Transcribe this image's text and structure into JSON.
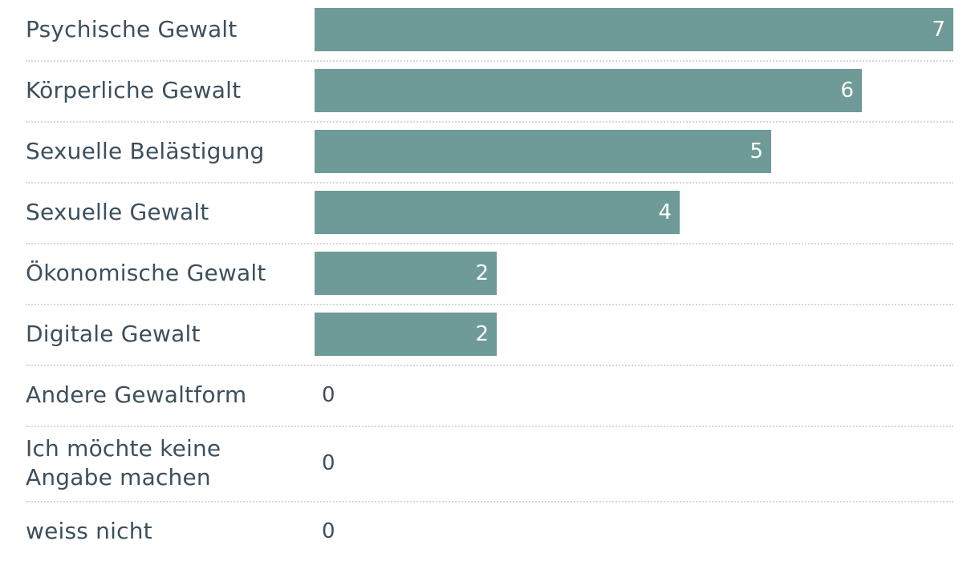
{
  "chart_data": {
    "type": "bar",
    "orientation": "horizontal",
    "categories": [
      "Psychische Gewalt",
      "Körperliche Gewalt",
      "Sexuelle Belästigung",
      "Sexuelle Gewalt",
      "Ökonomische Gewalt",
      "Digitale Gewalt",
      "Andere Gewaltform",
      "Ich möchte keine Angabe machen",
      "weiss nicht"
    ],
    "values": [
      7,
      6,
      5,
      4,
      2,
      2,
      0,
      0,
      0
    ],
    "xlim": [
      0,
      7
    ],
    "bar_color": "#6e9a98",
    "label_color": "#3d4f5c",
    "grid": false
  }
}
